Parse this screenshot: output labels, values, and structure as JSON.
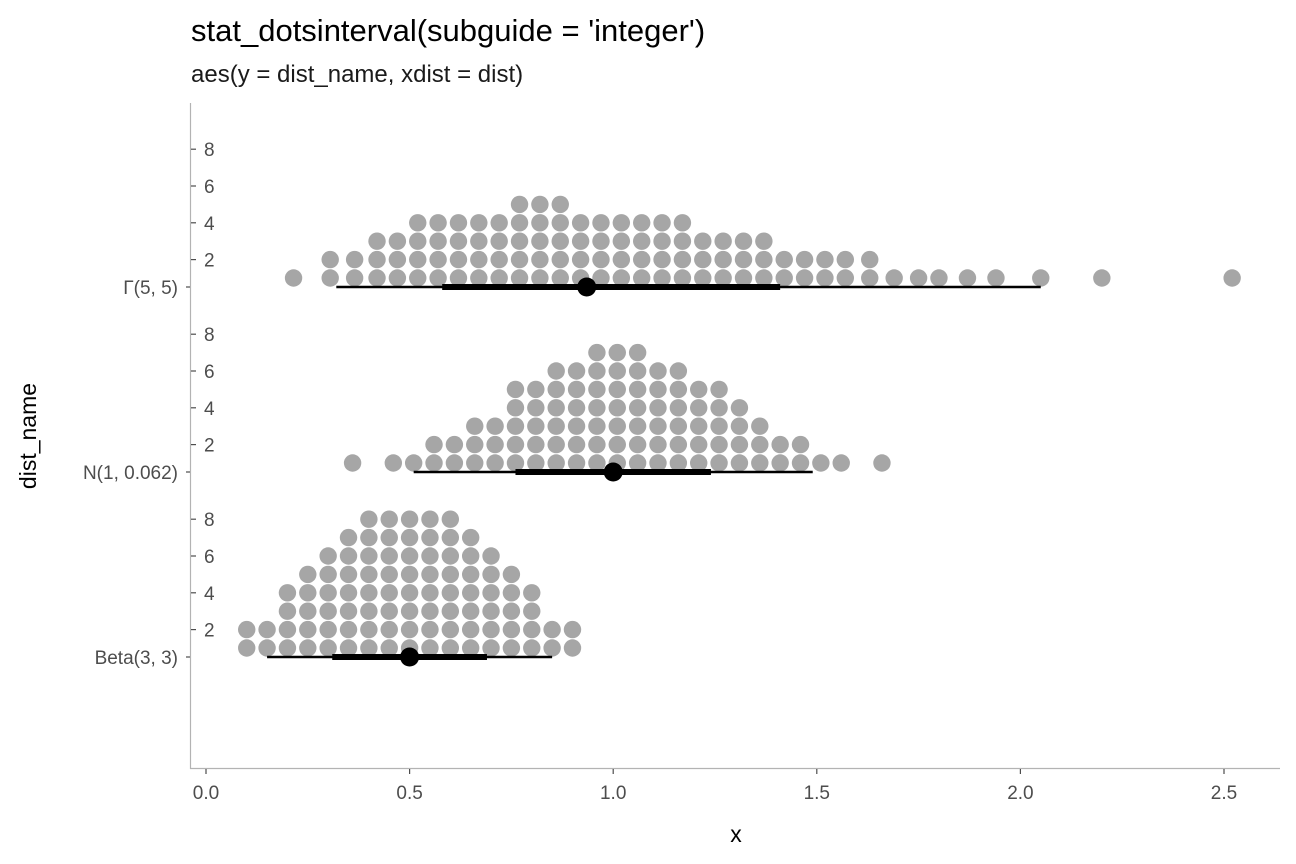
{
  "chart_data": {
    "type": "dots",
    "title": "stat_dotsinterval(subguide = 'integer')",
    "subtitle": "aes(y = dist_name, xdist = dist)",
    "xlabel": "x",
    "ylabel": "dist_name",
    "xlim": [
      -0.04,
      2.64
    ],
    "x_ticks": [
      "0.0",
      "0.5",
      "1.0",
      "1.5",
      "2.0",
      "2.5"
    ],
    "x_tick_values": [
      0,
      0.5,
      1.0,
      1.5,
      2.0,
      2.5
    ],
    "subguide_ticks": [
      "2",
      "4",
      "6",
      "8"
    ],
    "subguide_tick_values": [
      2,
      4,
      6,
      8
    ],
    "dot_color": "#a6a6a6",
    "interval_color": "#000000",
    "grid": false,
    "series": [
      {
        "name": "Beta(3, 3)",
        "median": 0.5,
        "interval_66": [
          0.31,
          0.69
        ],
        "interval_95": [
          0.15,
          0.85
        ],
        "columns": [
          {
            "x": 0.1,
            "count": 2
          },
          {
            "x": 0.15,
            "count": 2
          },
          {
            "x": 0.2,
            "count": 4
          },
          {
            "x": 0.25,
            "count": 5
          },
          {
            "x": 0.3,
            "count": 6
          },
          {
            "x": 0.35,
            "count": 7
          },
          {
            "x": 0.4,
            "count": 8
          },
          {
            "x": 0.45,
            "count": 8
          },
          {
            "x": 0.5,
            "count": 8
          },
          {
            "x": 0.55,
            "count": 8
          },
          {
            "x": 0.6,
            "count": 8
          },
          {
            "x": 0.65,
            "count": 7
          },
          {
            "x": 0.7,
            "count": 6
          },
          {
            "x": 0.75,
            "count": 5
          },
          {
            "x": 0.8,
            "count": 4
          },
          {
            "x": 0.85,
            "count": 2
          },
          {
            "x": 0.9,
            "count": 2
          }
        ]
      },
      {
        "name": "N(1, 0.062)",
        "median": 1.0,
        "interval_66": [
          0.76,
          1.24
        ],
        "interval_95": [
          0.51,
          1.49
        ],
        "columns": [
          {
            "x": 0.36,
            "count": 1
          },
          {
            "x": 0.46,
            "count": 1
          },
          {
            "x": 0.51,
            "count": 1
          },
          {
            "x": 0.56,
            "count": 2
          },
          {
            "x": 0.61,
            "count": 2
          },
          {
            "x": 0.66,
            "count": 3
          },
          {
            "x": 0.71,
            "count": 3
          },
          {
            "x": 0.76,
            "count": 5
          },
          {
            "x": 0.81,
            "count": 5
          },
          {
            "x": 0.86,
            "count": 6
          },
          {
            "x": 0.91,
            "count": 6
          },
          {
            "x": 0.96,
            "count": 7
          },
          {
            "x": 1.01,
            "count": 7
          },
          {
            "x": 1.06,
            "count": 7
          },
          {
            "x": 1.11,
            "count": 6
          },
          {
            "x": 1.16,
            "count": 6
          },
          {
            "x": 1.21,
            "count": 5
          },
          {
            "x": 1.26,
            "count": 5
          },
          {
            "x": 1.31,
            "count": 4
          },
          {
            "x": 1.36,
            "count": 3
          },
          {
            "x": 1.41,
            "count": 2
          },
          {
            "x": 1.46,
            "count": 2
          },
          {
            "x": 1.51,
            "count": 1
          },
          {
            "x": 1.56,
            "count": 1
          },
          {
            "x": 1.66,
            "count": 1
          }
        ]
      },
      {
        "name": "Γ(5, 5)",
        "median": 0.935,
        "interval_66": [
          0.58,
          1.41
        ],
        "interval_95": [
          0.32,
          2.05
        ],
        "columns": [
          {
            "x": 0.215,
            "count": 1
          },
          {
            "x": 0.305,
            "count": 2
          },
          {
            "x": 0.365,
            "count": 2
          },
          {
            "x": 0.42,
            "count": 3
          },
          {
            "x": 0.47,
            "count": 3
          },
          {
            "x": 0.52,
            "count": 4
          },
          {
            "x": 0.57,
            "count": 4
          },
          {
            "x": 0.62,
            "count": 4
          },
          {
            "x": 0.67,
            "count": 4
          },
          {
            "x": 0.72,
            "count": 4
          },
          {
            "x": 0.77,
            "count": 5
          },
          {
            "x": 0.82,
            "count": 5
          },
          {
            "x": 0.87,
            "count": 5
          },
          {
            "x": 0.92,
            "count": 4
          },
          {
            "x": 0.97,
            "count": 4
          },
          {
            "x": 1.02,
            "count": 4
          },
          {
            "x": 1.07,
            "count": 4
          },
          {
            "x": 1.12,
            "count": 4
          },
          {
            "x": 1.17,
            "count": 4
          },
          {
            "x": 1.22,
            "count": 3
          },
          {
            "x": 1.27,
            "count": 3
          },
          {
            "x": 1.32,
            "count": 3
          },
          {
            "x": 1.37,
            "count": 3
          },
          {
            "x": 1.42,
            "count": 2
          },
          {
            "x": 1.47,
            "count": 2
          },
          {
            "x": 1.52,
            "count": 2
          },
          {
            "x": 1.57,
            "count": 2
          },
          {
            "x": 1.63,
            "count": 2
          },
          {
            "x": 1.69,
            "count": 1
          },
          {
            "x": 1.75,
            "count": 1
          },
          {
            "x": 1.8,
            "count": 1
          },
          {
            "x": 1.87,
            "count": 1
          },
          {
            "x": 1.94,
            "count": 1
          },
          {
            "x": 2.05,
            "count": 1
          },
          {
            "x": 2.2,
            "count": 1
          },
          {
            "x": 2.52,
            "count": 1
          }
        ]
      }
    ]
  }
}
